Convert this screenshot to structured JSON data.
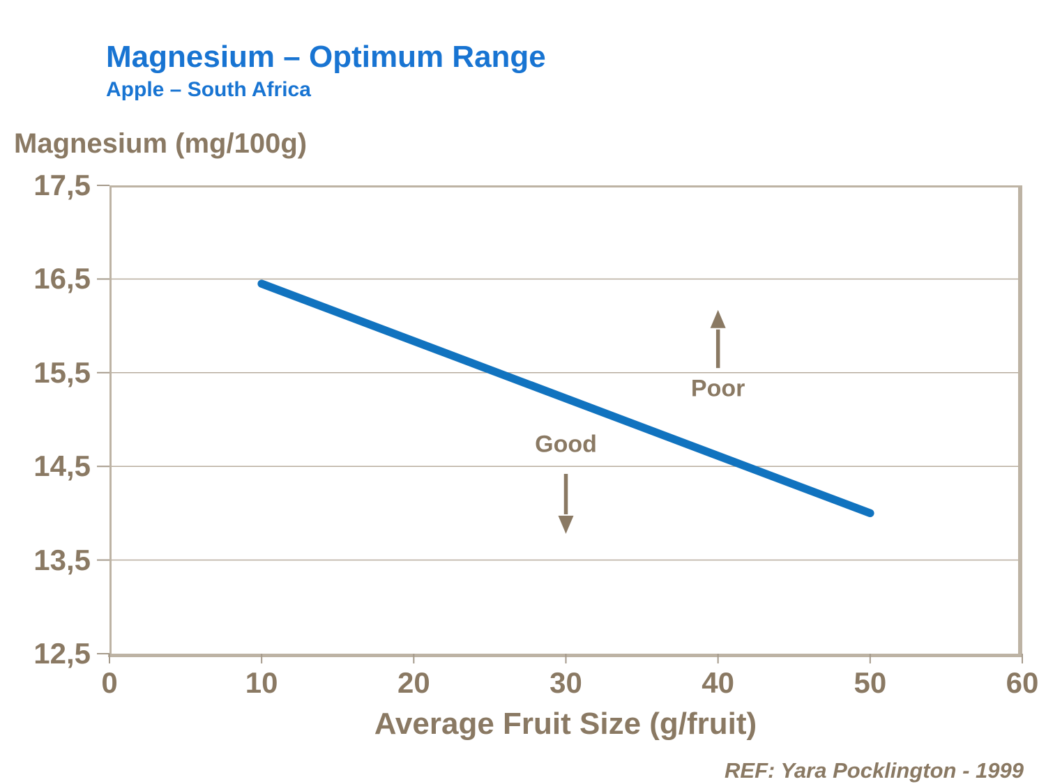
{
  "header": {
    "title": "Magnesium – Optimum Range",
    "subtitle": "Apple – South Africa"
  },
  "footer": {
    "reference": "REF: Yara Pocklington - 1999"
  },
  "theme": {
    "title_blue": "#1874D2",
    "line_blue": "#1173BF",
    "text_brown": "#8A7963",
    "axis_frame": "#BDB3A4",
    "gridline": "#B7AC9E",
    "tick": "#A59A8B",
    "background": "#FFFFFF"
  },
  "chart_data": {
    "type": "line",
    "title": "Magnesium – Optimum Range",
    "subtitle": "Apple – South Africa",
    "xlabel": "Average Fruit Size (g/fruit)",
    "ylabel": "Magnesium (mg/100g)",
    "xlim": [
      0,
      60
    ],
    "ylim": [
      12.5,
      17.5
    ],
    "x_ticks": {
      "values": [
        0,
        10,
        20,
        30,
        40,
        50,
        60
      ],
      "labels": [
        "0",
        "10",
        "20",
        "30",
        "40",
        "50",
        "60"
      ]
    },
    "y_ticks": {
      "values": [
        17.5,
        16.5,
        15.5,
        14.5,
        13.5,
        12.5
      ],
      "labels": [
        "17,5",
        "16,5",
        "15,5",
        "14,5",
        "13,5",
        "12,5"
      ]
    },
    "grid": "horizontal",
    "legend": "none",
    "decimal_separator": ",",
    "series": [
      {
        "name": "Optimum magnesium range line",
        "points": [
          [
            10,
            16.45
          ],
          [
            50,
            14.0
          ]
        ]
      }
    ],
    "annotations": [
      {
        "label": "Poor",
        "x": 40,
        "label_y": 15.33,
        "arrow": {
          "x": 40,
          "from_y": 15.55,
          "to_y": 16.17,
          "direction": "up"
        }
      },
      {
        "label": "Good",
        "x": 30,
        "label_y": 14.73,
        "arrow": {
          "x": 30,
          "from_y": 14.42,
          "to_y": 13.78,
          "direction": "down"
        }
      }
    ]
  }
}
